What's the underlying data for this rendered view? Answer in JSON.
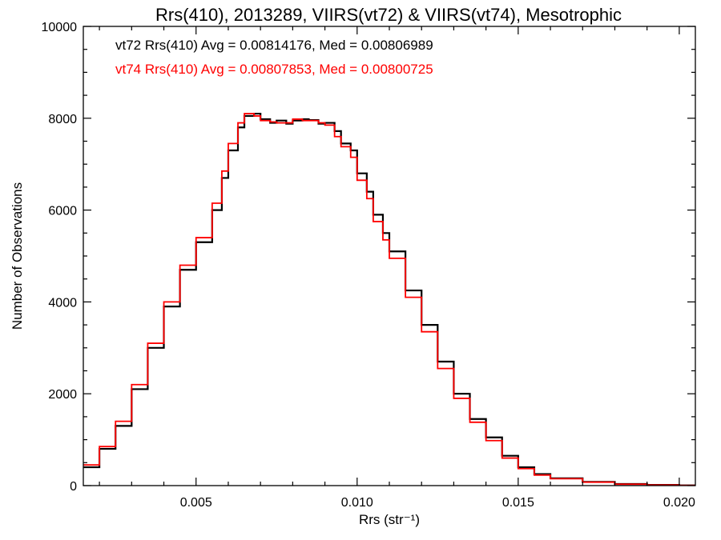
{
  "chart_data": {
    "type": "line",
    "title": "Rrs(410), 2013289, VIIRS(vt72) & VIIRS(vt74), Mesotrophic",
    "xlabel": "Rrs (str⁻¹)",
    "ylabel": "Number of Observations",
    "xlim": [
      0.0015,
      0.0205
    ],
    "ylim": [
      0,
      10000
    ],
    "x_ticks": [
      0.005,
      0.01,
      0.015,
      0.02
    ],
    "x_tick_labels": [
      "0.005",
      "0.010",
      "0.015",
      "0.020"
    ],
    "y_ticks": [
      0,
      2000,
      4000,
      6000,
      8000,
      10000
    ],
    "y_tick_labels": [
      "0",
      "2000",
      "4000",
      "6000",
      "8000",
      "10000"
    ],
    "grid": false,
    "step": true,
    "annotations": [
      {
        "text": "vt72 Rrs(410) Avg = 0.00814176, Med = 0.00806989",
        "color": "#000000"
      },
      {
        "text": "vt74 Rrs(410) Avg = 0.00807853, Med = 0.00800725",
        "color": "#ff0000"
      }
    ],
    "series": [
      {
        "color": "#000000",
        "x": [
          0.0015,
          0.002,
          0.0025,
          0.003,
          0.0035,
          0.004,
          0.0045,
          0.005,
          0.0055,
          0.0058,
          0.006,
          0.0063,
          0.0065,
          0.0068,
          0.007,
          0.0073,
          0.0075,
          0.0078,
          0.008,
          0.0083,
          0.0085,
          0.0088,
          0.009,
          0.0093,
          0.0095,
          0.0098,
          0.01,
          0.0103,
          0.0105,
          0.0108,
          0.011,
          0.0115,
          0.012,
          0.0125,
          0.013,
          0.0135,
          0.014,
          0.0145,
          0.015,
          0.0155,
          0.016,
          0.017,
          0.018,
          0.019,
          0.02,
          0.0205
        ],
        "y": [
          400,
          800,
          1300,
          2100,
          3000,
          3900,
          4700,
          5300,
          6000,
          6700,
          7300,
          7800,
          8050,
          8100,
          7980,
          7900,
          7950,
          7880,
          7950,
          7980,
          7960,
          7880,
          7900,
          7720,
          7450,
          7300,
          6800,
          6400,
          5900,
          5500,
          5100,
          4250,
          3500,
          2700,
          2000,
          1450,
          1050,
          650,
          400,
          250,
          160,
          80,
          35,
          15,
          5,
          2
        ]
      },
      {
        "color": "#ff0000",
        "x": [
          0.0015,
          0.002,
          0.0025,
          0.003,
          0.0035,
          0.004,
          0.0045,
          0.005,
          0.0055,
          0.0058,
          0.006,
          0.0063,
          0.0065,
          0.0068,
          0.007,
          0.0073,
          0.0075,
          0.0078,
          0.008,
          0.0083,
          0.0085,
          0.0088,
          0.009,
          0.0093,
          0.0095,
          0.0098,
          0.01,
          0.0103,
          0.0105,
          0.0108,
          0.011,
          0.0115,
          0.012,
          0.0125,
          0.013,
          0.0135,
          0.014,
          0.0145,
          0.015,
          0.0155,
          0.016,
          0.017,
          0.018,
          0.019,
          0.02,
          0.0205
        ],
        "y": [
          450,
          850,
          1400,
          2200,
          3100,
          4000,
          4800,
          5400,
          6150,
          6850,
          7450,
          7900,
          8100,
          8050,
          7950,
          7920,
          7900,
          7900,
          7980,
          7950,
          7950,
          7900,
          7850,
          7600,
          7380,
          7150,
          6650,
          6250,
          5750,
          5350,
          4950,
          4100,
          3350,
          2550,
          1900,
          1380,
          980,
          600,
          370,
          230,
          150,
          75,
          30,
          12,
          4,
          2
        ]
      }
    ]
  }
}
